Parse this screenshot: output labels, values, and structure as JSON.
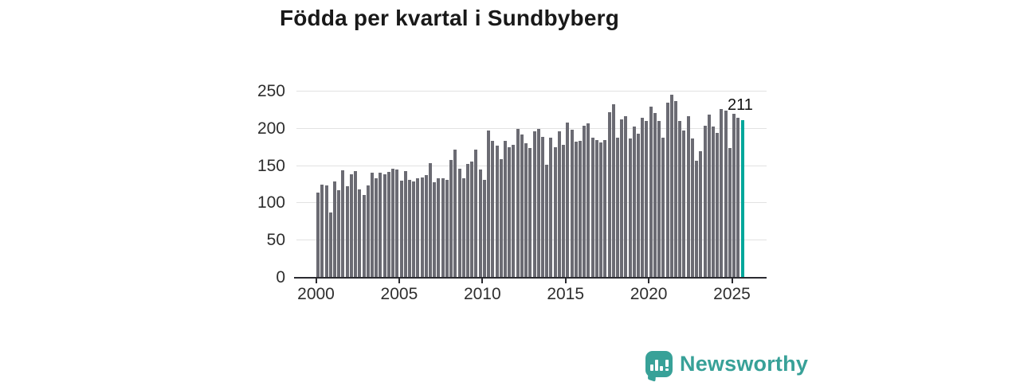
{
  "title": "Födda per kvartal i Sundbyberg",
  "annotation": {
    "label": "211"
  },
  "logo": {
    "text": "Newsworthy"
  },
  "colors": {
    "bar": "#6b6b73",
    "highlight": "#00a79b",
    "logo_teal": "#38a198",
    "grid": "#e2e2e2",
    "axis": "#2b2b30",
    "tick_text": "#2e2e2e",
    "title_text": "#191919"
  },
  "chart_data": {
    "type": "bar",
    "title": "Födda per kvartal i Sundbyberg",
    "xlabel": "",
    "ylabel": "",
    "x_unit": "quarter",
    "x_range": [
      "2000 Q1",
      "2025 Q3"
    ],
    "ylim": [
      0,
      250
    ],
    "y_ticks": [
      0,
      50,
      100,
      150,
      200,
      250
    ],
    "x_ticks": [
      2000,
      2005,
      2010,
      2015,
      2020,
      2025
    ],
    "grid": "horizontal",
    "legend": "none",
    "highlight_last_bar": true,
    "highlight_value_label": "211",
    "values": [
      113,
      124,
      123,
      87,
      128,
      117,
      143,
      122,
      138,
      142,
      118,
      110,
      123,
      140,
      132,
      140,
      138,
      141,
      145,
      144,
      129,
      142,
      130,
      128,
      132,
      134,
      137,
      153,
      127,
      133,
      133,
      130,
      157,
      171,
      145,
      133,
      152,
      155,
      171,
      144,
      130,
      197,
      183,
      176,
      158,
      183,
      174,
      177,
      199,
      191,
      180,
      173,
      196,
      199,
      188,
      151,
      187,
      174,
      196,
      177,
      207,
      198,
      182,
      183,
      203,
      206,
      187,
      184,
      181,
      184,
      221,
      232,
      187,
      212,
      216,
      186,
      202,
      192,
      214,
      209,
      229,
      220,
      209,
      187,
      234,
      245,
      236,
      209,
      197,
      216,
      186,
      156,
      169,
      203,
      218,
      202,
      193,
      225,
      223,
      173,
      219,
      214,
      211
    ]
  }
}
